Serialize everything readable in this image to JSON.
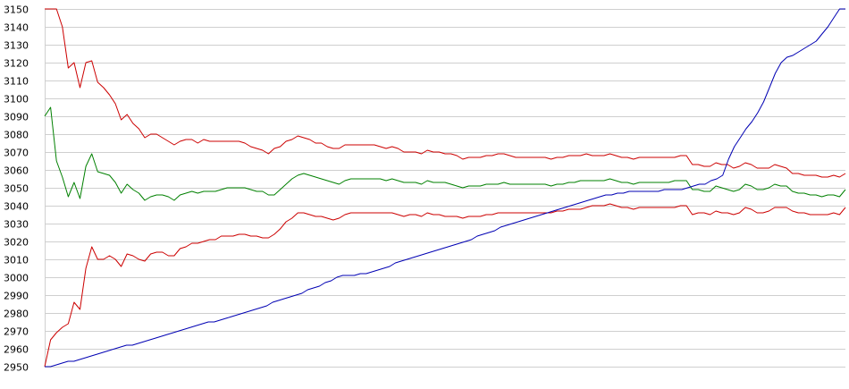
{
  "chart_data": {
    "type": "line",
    "title": "",
    "xlabel": "",
    "ylabel": "",
    "ylim": [
      2950,
      3150
    ],
    "ytick_step": 10,
    "yticks": [
      "2950",
      "2960",
      "2970",
      "2980",
      "2990",
      "3000",
      "3010",
      "3020",
      "3030",
      "3040",
      "3050",
      "3060",
      "3070",
      "3080",
      "3090",
      "3100",
      "3110",
      "3120",
      "3130",
      "3140",
      "3150"
    ],
    "grid": true,
    "legend": "none",
    "series": [
      {
        "color": "#cc0000",
        "values": [
          3150,
          3150,
          3150,
          3140,
          3117,
          3120,
          3106,
          3120,
          3121,
          3109,
          3106,
          3102,
          3097,
          3088,
          3091,
          3086,
          3083,
          3078,
          3080,
          3080,
          3078,
          3076,
          3074,
          3076,
          3077,
          3077,
          3075,
          3077,
          3076,
          3076,
          3076,
          3076,
          3076,
          3076,
          3075,
          3073,
          3072,
          3071,
          3069,
          3072,
          3073,
          3076,
          3077,
          3079,
          3078,
          3077,
          3075,
          3075,
          3073,
          3072,
          3072,
          3074,
          3074,
          3074,
          3074,
          3074,
          3074,
          3073,
          3072,
          3073,
          3072,
          3070,
          3070,
          3070,
          3069,
          3071,
          3070,
          3070,
          3069,
          3069,
          3068,
          3066,
          3067,
          3067,
          3067,
          3068,
          3068,
          3069,
          3069,
          3068,
          3067,
          3067,
          3067,
          3067,
          3067,
          3067,
          3066,
          3067,
          3067,
          3068,
          3068,
          3068,
          3069,
          3068,
          3068,
          3068,
          3069,
          3068,
          3067,
          3067,
          3066,
          3067,
          3067,
          3067,
          3067,
          3067,
          3067,
          3067,
          3068,
          3068,
          3063,
          3063,
          3062,
          3062,
          3064,
          3063,
          3063,
          3061,
          3062,
          3064,
          3063,
          3061,
          3061,
          3061,
          3063,
          3062,
          3061,
          3058,
          3058,
          3057,
          3057,
          3057,
          3056,
          3056,
          3057,
          3056,
          3058
        ]
      },
      {
        "color": "#008000",
        "values": [
          3090,
          3095,
          3065,
          3056,
          3045,
          3053,
          3044,
          3062,
          3069,
          3059,
          3058,
          3057,
          3053,
          3047,
          3052,
          3049,
          3047,
          3043,
          3045,
          3046,
          3046,
          3045,
          3043,
          3046,
          3047,
          3048,
          3047,
          3048,
          3048,
          3048,
          3049,
          3050,
          3050,
          3050,
          3050,
          3049,
          3048,
          3048,
          3046,
          3046,
          3049,
          3052,
          3055,
          3057,
          3058,
          3057,
          3056,
          3055,
          3054,
          3053,
          3052,
          3054,
          3055,
          3055,
          3055,
          3055,
          3055,
          3055,
          3054,
          3055,
          3054,
          3053,
          3053,
          3053,
          3052,
          3054,
          3053,
          3053,
          3053,
          3052,
          3051,
          3050,
          3051,
          3051,
          3051,
          3052,
          3052,
          3052,
          3053,
          3052,
          3052,
          3052,
          3052,
          3052,
          3052,
          3052,
          3051,
          3052,
          3052,
          3053,
          3053,
          3054,
          3054,
          3054,
          3054,
          3054,
          3055,
          3054,
          3053,
          3053,
          3052,
          3053,
          3053,
          3053,
          3053,
          3053,
          3053,
          3054,
          3054,
          3054,
          3049,
          3049,
          3048,
          3048,
          3051,
          3050,
          3049,
          3048,
          3049,
          3052,
          3051,
          3049,
          3049,
          3050,
          3052,
          3051,
          3051,
          3048,
          3047,
          3047,
          3046,
          3046,
          3045,
          3046,
          3046,
          3045,
          3049
        ]
      },
      {
        "color": "#cc0000",
        "values": [
          2950,
          2965,
          2969,
          2972,
          2974,
          2986,
          2982,
          3005,
          3017,
          3010,
          3010,
          3012,
          3010,
          3006,
          3013,
          3012,
          3010,
          3009,
          3013,
          3014,
          3014,
          3012,
          3012,
          3016,
          3017,
          3019,
          3019,
          3020,
          3021,
          3021,
          3023,
          3023,
          3023,
          3024,
          3024,
          3023,
          3023,
          3022,
          3022,
          3024,
          3027,
          3031,
          3033,
          3036,
          3036,
          3035,
          3034,
          3034,
          3033,
          3032,
          3033,
          3035,
          3036,
          3036,
          3036,
          3036,
          3036,
          3036,
          3036,
          3036,
          3035,
          3034,
          3035,
          3035,
          3034,
          3036,
          3035,
          3035,
          3034,
          3034,
          3034,
          3033,
          3034,
          3034,
          3034,
          3035,
          3035,
          3036,
          3036,
          3036,
          3036,
          3036,
          3036,
          3036,
          3036,
          3036,
          3036,
          3037,
          3037,
          3038,
          3038,
          3038,
          3039,
          3040,
          3040,
          3040,
          3041,
          3040,
          3039,
          3039,
          3038,
          3039,
          3039,
          3039,
          3039,
          3039,
          3039,
          3039,
          3040,
          3040,
          3035,
          3036,
          3036,
          3035,
          3037,
          3036,
          3036,
          3035,
          3036,
          3039,
          3038,
          3036,
          3036,
          3037,
          3039,
          3039,
          3039,
          3037,
          3036,
          3036,
          3035,
          3035,
          3035,
          3035,
          3036,
          3035,
          3039
        ]
      },
      {
        "color": "#0000b3",
        "values": [
          2950,
          2950,
          2951,
          2952,
          2953,
          2953,
          2954,
          2955,
          2956,
          2957,
          2958,
          2959,
          2960,
          2961,
          2962,
          2962,
          2963,
          2964,
          2965,
          2966,
          2967,
          2968,
          2969,
          2970,
          2971,
          2972,
          2973,
          2974,
          2975,
          2975,
          2976,
          2977,
          2978,
          2979,
          2980,
          2981,
          2982,
          2983,
          2984,
          2986,
          2987,
          2988,
          2989,
          2990,
          2991,
          2993,
          2994,
          2995,
          2997,
          2998,
          3000,
          3001,
          3001,
          3001,
          3002,
          3002,
          3003,
          3004,
          3005,
          3006,
          3008,
          3009,
          3010,
          3011,
          3012,
          3013,
          3014,
          3015,
          3016,
          3017,
          3018,
          3019,
          3020,
          3021,
          3023,
          3024,
          3025,
          3026,
          3028,
          3029,
          3030,
          3031,
          3032,
          3033,
          3034,
          3035,
          3036,
          3037,
          3038,
          3039,
          3040,
          3041,
          3042,
          3043,
          3044,
          3045,
          3046,
          3046,
          3047,
          3047,
          3048,
          3048,
          3048,
          3048,
          3048,
          3048,
          3049,
          3049,
          3049,
          3049,
          3050,
          3051,
          3052,
          3052,
          3054,
          3055,
          3057,
          3066,
          3073,
          3078,
          3083,
          3087,
          3092,
          3098,
          3106,
          3114,
          3120,
          3123,
          3124,
          3126,
          3128,
          3130,
          3132,
          3136,
          3140,
          3145,
          3150,
          3150
        ]
      }
    ]
  }
}
